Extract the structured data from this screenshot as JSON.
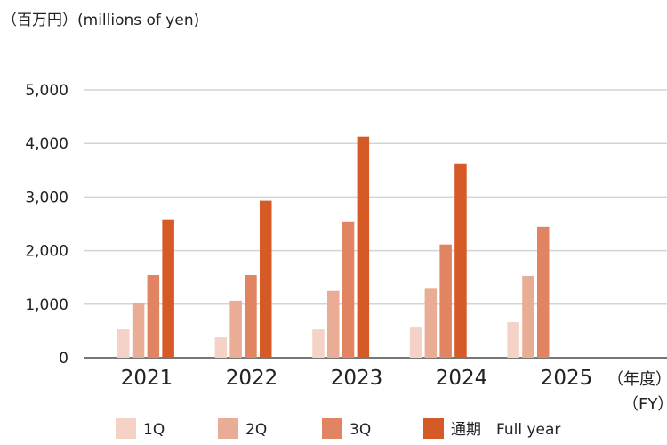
{
  "chart_data": {
    "type": "bar",
    "unit_label": "（百万円）(millions of yen)",
    "x_unit_label_1": "（年度）",
    "x_unit_label_2": "（FY）",
    "categories": [
      "2021",
      "2022",
      "2023",
      "2024",
      "2025"
    ],
    "ylim": [
      0,
      5000
    ],
    "yticks": [
      0,
      1000,
      2000,
      3000,
      4000,
      5000
    ],
    "ytick_labels": [
      "0",
      "1,000",
      "2,000",
      "3,000",
      "4,000",
      "5,000"
    ],
    "grid": true,
    "legend_position": "bottom",
    "series": [
      {
        "name": "1Q",
        "color": "#f4d3c6",
        "values": [
          530,
          380,
          530,
          580,
          665
        ]
      },
      {
        "name": "2Q",
        "color": "#e9ac94",
        "values": [
          1030,
          1065,
          1250,
          1290,
          1530
        ]
      },
      {
        "name": "3Q",
        "color": "#e08461",
        "values": [
          1545,
          1545,
          2545,
          2115,
          2445
        ]
      },
      {
        "name": "通期　Full year",
        "color": "#d55a26",
        "values": [
          2580,
          2930,
          4125,
          3625,
          null
        ]
      }
    ]
  }
}
